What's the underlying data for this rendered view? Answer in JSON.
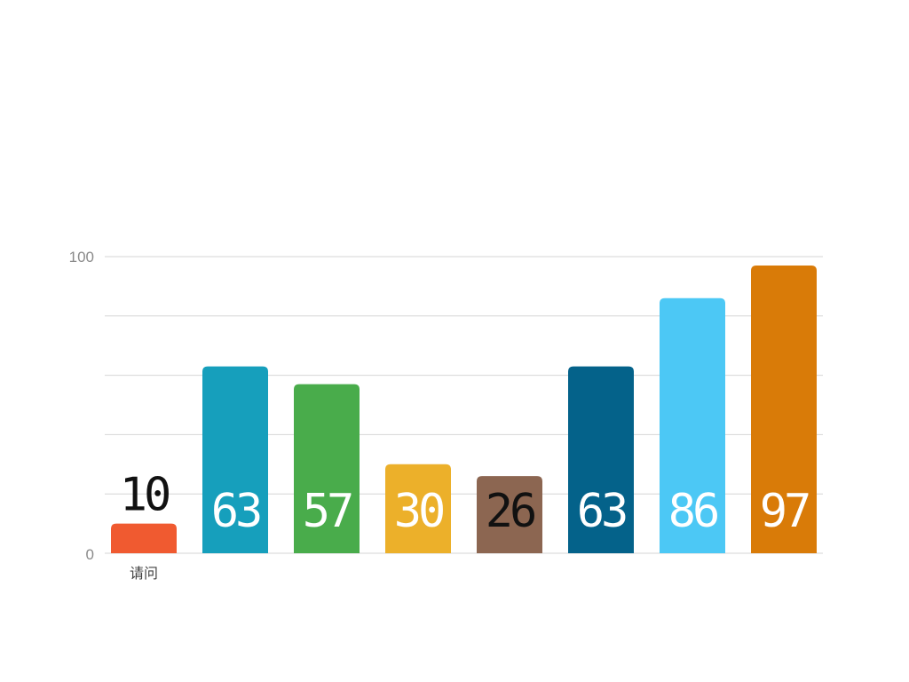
{
  "chart_data": {
    "type": "bar",
    "categories": [
      "请问",
      "",
      "",
      "",
      "",
      "",
      "",
      ""
    ],
    "values": [
      10,
      63,
      57,
      30,
      26,
      63,
      86,
      97
    ],
    "colors": [
      "#f05a30",
      "#169fbc",
      "#49ac4b",
      "#ecb02a",
      "#8c6651",
      "#04628a",
      "#4cc8f5",
      "#d97b08"
    ],
    "value_label_colors": [
      "#111111",
      "#ffffff",
      "#ffffff",
      "#ffffff",
      "#111111",
      "#ffffff",
      "#ffffff",
      "#ffffff"
    ],
    "value_labels": [
      "10",
      "63",
      "57",
      "30",
      "26",
      "63",
      "86",
      "97"
    ],
    "y_tick_labels": [
      "0",
      "100"
    ],
    "ylim": [
      0,
      100
    ],
    "grid": true,
    "title": "",
    "xlabel": "",
    "ylabel": ""
  }
}
